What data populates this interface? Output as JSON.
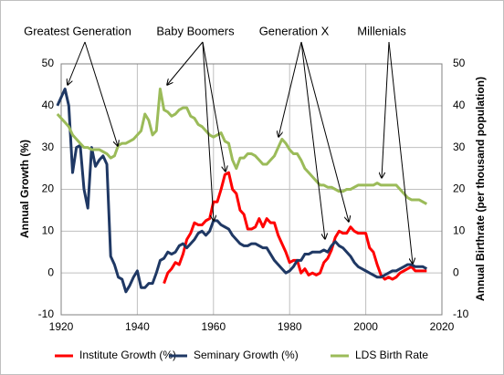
{
  "chart_data": {
    "type": "line",
    "y_label": "Annual Growth (%)",
    "y2_label": "Annual Birthrate (per thousand population)",
    "annotations": [
      "Greatest Generation",
      "Baby Boomers",
      "Generation X",
      "Millenials"
    ],
    "x": [
      1919,
      1920,
      1921,
      1922,
      1923,
      1924,
      1925,
      1926,
      1927,
      1928,
      1929,
      1930,
      1931,
      1932,
      1933,
      1934,
      1935,
      1936,
      1937,
      1938,
      1939,
      1940,
      1941,
      1942,
      1943,
      1944,
      1945,
      1946,
      1947,
      1948,
      1949,
      1950,
      1951,
      1952,
      1953,
      1954,
      1955,
      1956,
      1957,
      1958,
      1959,
      1960,
      1961,
      1962,
      1963,
      1964,
      1965,
      1966,
      1967,
      1968,
      1969,
      1970,
      1971,
      1972,
      1973,
      1974,
      1975,
      1976,
      1977,
      1978,
      1979,
      1980,
      1981,
      1982,
      1983,
      1984,
      1985,
      1986,
      1987,
      1988,
      1989,
      1990,
      1991,
      1992,
      1993,
      1994,
      1995,
      1996,
      1997,
      1998,
      1999,
      2000,
      2001,
      2002,
      2003,
      2004,
      2005,
      2006,
      2007,
      2008,
      2009,
      2010,
      2011,
      2012,
      2013,
      2014,
      2015,
      2016
    ],
    "series": [
      {
        "name": "Institute Growth (%)",
        "color": "#ff0000",
        "values": [
          null,
          null,
          null,
          null,
          null,
          null,
          null,
          null,
          null,
          null,
          null,
          null,
          null,
          null,
          null,
          null,
          null,
          null,
          null,
          null,
          null,
          null,
          null,
          null,
          null,
          null,
          null,
          null,
          -2.5,
          0,
          1,
          2.5,
          2,
          4.5,
          8,
          9.5,
          12,
          11.5,
          11.5,
          12.5,
          13,
          17,
          17,
          20,
          23.5,
          24,
          20,
          19,
          15,
          14,
          10.5,
          10.5,
          11,
          13,
          11,
          13,
          12,
          12,
          9,
          7,
          5,
          2.5,
          3,
          3,
          0,
          1,
          -0.5,
          0,
          -0.5,
          0,
          2.5,
          3.5,
          5.5,
          8.5,
          10,
          9.5,
          9.5,
          11,
          10,
          9.5,
          9.5,
          9.5,
          6,
          5,
          2,
          -0.5,
          -1.5,
          -1,
          -1.5,
          -1,
          0,
          0.5,
          1,
          1.5,
          0.5,
          0.5,
          0.5,
          0.5
        ]
      },
      {
        "name": "Seminary Growth (%)",
        "color": "#1f3864",
        "values": [
          40,
          42,
          44,
          40,
          24,
          30,
          30.5,
          20,
          15.5,
          30,
          25.5,
          27,
          28,
          26,
          4,
          2,
          -1,
          -1.5,
          -4.5,
          -3,
          -1,
          0.5,
          -3.5,
          -3.5,
          -2.5,
          -2.5,
          0,
          3,
          3.5,
          5,
          4.5,
          5,
          6.5,
          7,
          6,
          7,
          8,
          9.5,
          10,
          9,
          10,
          12.5,
          12.5,
          11.5,
          11,
          10.5,
          9,
          8,
          7,
          6.5,
          6.5,
          7,
          7,
          6.5,
          6,
          6,
          4.5,
          3,
          2,
          1,
          0,
          0.5,
          1.5,
          3,
          3,
          4.5,
          4.5,
          5,
          5,
          5,
          5.5,
          5,
          6.5,
          7.5,
          6.5,
          6,
          5,
          4,
          2.5,
          1.5,
          1,
          0.5,
          0,
          -0.5,
          -1,
          -1,
          -0.5,
          0,
          0.5,
          0.5,
          1,
          1.5,
          2,
          2,
          1.5,
          1.5,
          1.5,
          1
        ]
      },
      {
        "name": "LDS Birth Rate",
        "color": "#9bbb59",
        "axis": "y2",
        "values": [
          38,
          37,
          36,
          35,
          33,
          32,
          31,
          30,
          30,
          29.5,
          29.5,
          29.5,
          29,
          28.5,
          27.5,
          28,
          30.5,
          31,
          31,
          31.5,
          32,
          33,
          34,
          38,
          36.5,
          33,
          34,
          44,
          39,
          38.5,
          37.5,
          38,
          39,
          39.5,
          39.5,
          37.5,
          37,
          35.5,
          35,
          34,
          33,
          32.5,
          33,
          33.5,
          31.5,
          31,
          27,
          25,
          27.5,
          27.5,
          28.5,
          28.5,
          28,
          27,
          26,
          26,
          27,
          28,
          30,
          32,
          31,
          29.5,
          28.5,
          28.5,
          27,
          25,
          24,
          23,
          22,
          21,
          21,
          20.5,
          20.5,
          20,
          19.5,
          19.5,
          20,
          20,
          20.5,
          21,
          21,
          21,
          21,
          21,
          21.5,
          21,
          21,
          21,
          21,
          21,
          20,
          19,
          18,
          17.5,
          17.5,
          17.5,
          17,
          16.5
        ]
      }
    ],
    "xlim": [
      1920,
      2020
    ],
    "xticks": [
      1920,
      1940,
      1960,
      1980,
      2000,
      2020
    ],
    "ylim": [
      -10,
      50
    ],
    "yticks": [
      -10,
      0,
      10,
      20,
      30,
      40,
      50
    ],
    "y2lim": [
      -10,
      50
    ],
    "y2ticks": [
      -10,
      0,
      10,
      20,
      30,
      40,
      50
    ],
    "grid": true,
    "legend": "bottom"
  }
}
